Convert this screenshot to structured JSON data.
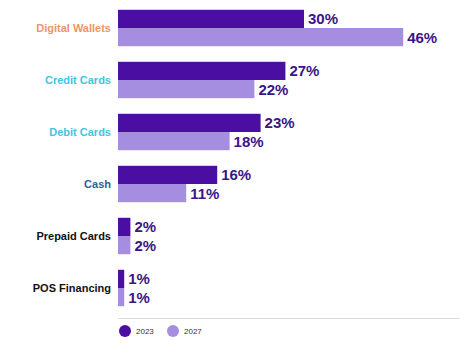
{
  "chart_data": {
    "type": "bar",
    "orientation": "horizontal",
    "categories": [
      "Digital Wallets",
      "Credit Cards",
      "Debit Cards",
      "Cash",
      "Prepaid Cards",
      "POS Financing"
    ],
    "series": [
      {
        "name": "2023",
        "color": "#4b0ea3",
        "values": [
          30,
          27,
          23,
          16,
          2,
          1
        ],
        "value_labels": [
          "30%",
          "27%",
          "23%",
          "16%",
          "2%",
          "1%"
        ]
      },
      {
        "name": "2027",
        "color": "#a58ee0",
        "values": [
          46,
          22,
          18,
          11,
          2,
          1
        ],
        "value_labels": [
          "46%",
          "22%",
          "18%",
          "11%",
          "2%",
          "1%"
        ]
      }
    ],
    "xlim": [
      0,
      55
    ],
    "xticks": [],
    "data_labels": true,
    "tick_labels": "y",
    "grid": false,
    "legend": "bottom-left"
  }
}
